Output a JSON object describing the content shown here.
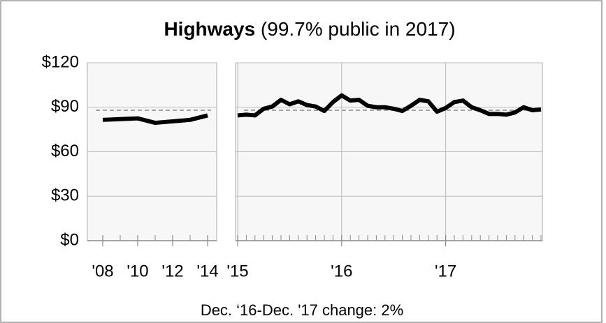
{
  "title": "Highways",
  "subtitle": "(99.7% public in 2017)",
  "footnote": "Dec. ‘16-Dec. '17 change: 2%",
  "chart_data": [
    {
      "type": "line",
      "categories": [
        "'08",
        null,
        "'10",
        null,
        "'12",
        null,
        "'14"
      ],
      "values": [
        81.5,
        82,
        82.5,
        79.5,
        80.5,
        81.5,
        84.5
      ],
      "color": "#000000",
      "reference": 88,
      "ylim": [
        0,
        120
      ],
      "yticks": [
        {
          "value": 0,
          "label": "$0"
        },
        {
          "value": 30,
          "label": "$30"
        },
        {
          "value": 60,
          "label": "$60"
        },
        {
          "value": 90,
          "label": "$90"
        },
        {
          "value": 120,
          "label": "$120"
        }
      ],
      "grid": true,
      "xgrid": false
    },
    {
      "type": "line",
      "categories": [
        "'15",
        null,
        null,
        null,
        null,
        null,
        null,
        null,
        null,
        null,
        null,
        null,
        "'16",
        null,
        null,
        null,
        null,
        null,
        null,
        null,
        null,
        null,
        null,
        null,
        "'17",
        null,
        null,
        null,
        null,
        null,
        null,
        null,
        null,
        null,
        null,
        null
      ],
      "values": [
        84.5,
        85,
        84.5,
        89,
        90.5,
        95,
        92,
        94,
        91.5,
        90.5,
        87.5,
        93.5,
        98,
        94.5,
        95,
        91,
        90,
        90,
        89,
        87.5,
        91,
        95,
        94,
        87,
        89.5,
        93.5,
        94.5,
        90,
        88,
        85.5,
        85.5,
        85,
        86.5,
        90,
        88,
        88.5
      ],
      "color": "#000000",
      "reference": 88,
      "grid": true,
      "xgrid": true
    }
  ]
}
